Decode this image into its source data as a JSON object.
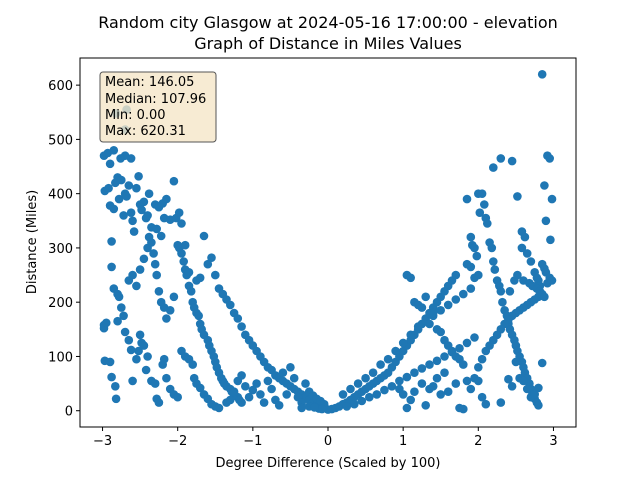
{
  "chart_data": {
    "type": "scatter",
    "title_line1": "Random city Glasgow at 2024-05-16 17:00:00  - elevation",
    "title_line2": "Graph of Distance in Miles Values",
    "xlabel": "Degree Difference (Scaled by 100)",
    "ylabel": "Distance (Miles)",
    "xlim": [
      -3.3,
      3.3
    ],
    "ylim": [
      -30,
      650
    ],
    "xticks": [
      -3,
      -2,
      -1,
      0,
      1,
      2,
      3
    ],
    "yticks": [
      0,
      100,
      200,
      300,
      400,
      500,
      600
    ],
    "grid": false,
    "marker_color": "#1f77b4",
    "stats_box": {
      "mean": "Mean: 146.05",
      "median": "Median: 107.96",
      "min": "Min: 0.00",
      "max": "Max: 620.31",
      "background": "#f5e6c8"
    },
    "points": [
      [
        -2.98,
        470
      ],
      [
        -2.93,
        475
      ],
      [
        -2.97,
        405
      ],
      [
        -2.92,
        410
      ],
      [
        -2.9,
        378
      ],
      [
        -2.85,
        372
      ],
      [
        -2.88,
        312
      ],
      [
        -2.88,
        265
      ],
      [
        -2.83,
        420
      ],
      [
        -2.8,
        430
      ],
      [
        -2.75,
        425
      ],
      [
        -2.78,
        390
      ],
      [
        -2.72,
        360
      ],
      [
        -2.7,
        400
      ],
      [
        -2.68,
        395
      ],
      [
        -2.65,
        415
      ],
      [
        -2.62,
        365
      ],
      [
        -2.6,
        350
      ],
      [
        -2.58,
        330
      ],
      [
        -2.55,
        410
      ],
      [
        -2.52,
        432
      ],
      [
        -2.5,
        380
      ],
      [
        -2.48,
        370
      ],
      [
        -2.45,
        385
      ],
      [
        -2.42,
        355
      ],
      [
        -2.4,
        360
      ],
      [
        -2.38,
        400
      ],
      [
        -2.35,
        338
      ],
      [
        -2.3,
        380
      ],
      [
        -2.28,
        335
      ],
      [
        -2.25,
        375
      ],
      [
        -2.22,
        322
      ],
      [
        -2.2,
        382
      ],
      [
        -2.18,
        355
      ],
      [
        -2.15,
        390
      ],
      [
        -2.1,
        352
      ],
      [
        -2.05,
        423
      ],
      [
        -2.02,
        355
      ],
      [
        -1.98,
        365
      ],
      [
        -1.95,
        345
      ],
      [
        -2.85,
        480
      ],
      [
        -2.9,
        455
      ],
      [
        -2.7,
        470
      ],
      [
        -2.76,
        465
      ],
      [
        -2.62,
        465
      ],
      [
        -2.82,
        548
      ],
      [
        -2.68,
        555
      ],
      [
        -2.7,
        518
      ],
      [
        -2.98,
        158
      ],
      [
        -2.98,
        152
      ],
      [
        -2.95,
        162
      ],
      [
        -2.97,
        92
      ],
      [
        -2.9,
        90
      ],
      [
        -2.88,
        62
      ],
      [
        -2.83,
        45
      ],
      [
        -2.82,
        22
      ],
      [
        -2.8,
        165
      ],
      [
        -2.78,
        210
      ],
      [
        -2.85,
        225
      ],
      [
        -2.8,
        215
      ],
      [
        -2.75,
        190
      ],
      [
        -2.72,
        175
      ],
      [
        -2.7,
        145
      ],
      [
        -2.65,
        130
      ],
      [
        -2.62,
        112
      ],
      [
        -2.6,
        55
      ],
      [
        -2.55,
        95
      ],
      [
        -2.52,
        110
      ],
      [
        -2.5,
        140
      ],
      [
        -2.48,
        125
      ],
      [
        -2.45,
        120
      ],
      [
        -2.4,
        100
      ],
      [
        -2.42,
        75
      ],
      [
        -2.35,
        55
      ],
      [
        -2.3,
        50
      ],
      [
        -2.28,
        22
      ],
      [
        -2.25,
        15
      ],
      [
        -2.2,
        85
      ],
      [
        -2.18,
        95
      ],
      [
        -2.15,
        60
      ],
      [
        -2.1,
        40
      ],
      [
        -2.05,
        30
      ],
      [
        -2.0,
        25
      ],
      [
        -2.65,
        240
      ],
      [
        -2.6,
        250
      ],
      [
        -2.55,
        230
      ],
      [
        -2.5,
        260
      ],
      [
        -2.45,
        280
      ],
      [
        -2.4,
        300
      ],
      [
        -2.38,
        320
      ],
      [
        -2.35,
        310
      ],
      [
        -2.32,
        290
      ],
      [
        -2.3,
        270
      ],
      [
        -2.28,
        250
      ],
      [
        -2.25,
        220
      ],
      [
        -2.22,
        200
      ],
      [
        -2.18,
        190
      ],
      [
        -2.15,
        170
      ],
      [
        -2.1,
        185
      ],
      [
        -2.05,
        210
      ],
      [
        -2.0,
        305
      ],
      [
        -1.98,
        300
      ],
      [
        -1.95,
        290
      ],
      [
        -1.92,
        275
      ],
      [
        -1.9,
        260
      ],
      [
        -1.88,
        250
      ],
      [
        -1.85,
        230
      ],
      [
        -1.82,
        220
      ],
      [
        -1.8,
        200
      ],
      [
        -1.78,
        190
      ],
      [
        -1.75,
        180
      ],
      [
        -1.72,
        175
      ],
      [
        -1.7,
        160
      ],
      [
        -1.68,
        150
      ],
      [
        -1.65,
        140
      ],
      [
        -1.6,
        130
      ],
      [
        -1.58,
        120
      ],
      [
        -1.55,
        110
      ],
      [
        -1.52,
        100
      ],
      [
        -1.5,
        90
      ],
      [
        -1.48,
        80
      ],
      [
        -1.45,
        70
      ],
      [
        -1.42,
        60
      ],
      [
        -1.4,
        55
      ],
      [
        -1.38,
        50
      ],
      [
        -1.35,
        45
      ],
      [
        -1.3,
        40
      ],
      [
        -1.28,
        35
      ],
      [
        -1.25,
        30
      ],
      [
        -1.2,
        25
      ],
      [
        -1.18,
        20
      ],
      [
        -1.15,
        15
      ],
      [
        -1.9,
        305
      ],
      [
        -1.85,
        255
      ],
      [
        -1.75,
        240
      ],
      [
        -1.7,
        245
      ],
      [
        -1.65,
        322
      ],
      [
        -1.6,
        270
      ],
      [
        -1.55,
        282
      ],
      [
        -1.5,
        250
      ],
      [
        -1.45,
        225
      ],
      [
        -1.4,
        215
      ],
      [
        -1.35,
        205
      ],
      [
        -1.3,
        195
      ],
      [
        -1.25,
        180
      ],
      [
        -1.2,
        170
      ],
      [
        -1.15,
        155
      ],
      [
        -1.1,
        140
      ],
      [
        -1.05,
        130
      ],
      [
        -1.0,
        120
      ],
      [
        -0.95,
        110
      ],
      [
        -0.9,
        100
      ],
      [
        -0.85,
        90
      ],
      [
        -0.8,
        80
      ],
      [
        -0.75,
        75
      ],
      [
        -0.7,
        65
      ],
      [
        -0.65,
        60
      ],
      [
        -0.6,
        55
      ],
      [
        -0.55,
        50
      ],
      [
        -0.5,
        45
      ],
      [
        -0.45,
        40
      ],
      [
        -0.4,
        35
      ],
      [
        -0.35,
        30
      ],
      [
        -0.3,
        25
      ],
      [
        -0.25,
        20
      ],
      [
        -0.2,
        15
      ],
      [
        -0.15,
        10
      ],
      [
        -0.1,
        8
      ],
      [
        -0.05,
        5
      ],
      [
        0.0,
        2
      ],
      [
        -1.95,
        110
      ],
      [
        -1.9,
        100
      ],
      [
        -1.85,
        95
      ],
      [
        -1.8,
        85
      ],
      [
        -1.78,
        60
      ],
      [
        -1.75,
        50
      ],
      [
        -1.7,
        42
      ],
      [
        -1.65,
        30
      ],
      [
        -1.6,
        22
      ],
      [
        -1.55,
        12
      ],
      [
        -1.5,
        8
      ],
      [
        -1.45,
        5
      ],
      [
        -1.35,
        15
      ],
      [
        -1.3,
        20
      ],
      [
        -1.25,
        35
      ],
      [
        -1.2,
        55
      ],
      [
        -1.15,
        65
      ],
      [
        -1.1,
        45
      ],
      [
        -1.05,
        25
      ],
      [
        -1.0,
        38
      ],
      [
        -0.95,
        50
      ],
      [
        -0.9,
        30
      ],
      [
        -0.85,
        15
      ],
      [
        -0.8,
        55
      ],
      [
        -0.75,
        40
      ],
      [
        -0.7,
        20
      ],
      [
        -0.65,
        10
      ],
      [
        -0.6,
        70
      ],
      [
        -0.55,
        30
      ],
      [
        -0.5,
        80
      ],
      [
        -0.45,
        60
      ],
      [
        -0.4,
        25
      ],
      [
        -0.35,
        15
      ],
      [
        -0.3,
        50
      ],
      [
        -0.25,
        35
      ],
      [
        -0.2,
        28
      ],
      [
        -0.15,
        22
      ],
      [
        -0.1,
        18
      ],
      [
        -0.05,
        12
      ],
      [
        -0.25,
        8
      ],
      [
        -0.35,
        5
      ],
      [
        -0.12,
        4
      ],
      [
        -0.08,
        3
      ],
      [
        -0.18,
        6
      ],
      [
        0.05,
        3
      ],
      [
        0.1,
        5
      ],
      [
        0.15,
        8
      ],
      [
        0.2,
        12
      ],
      [
        0.25,
        15
      ],
      [
        0.3,
        20
      ],
      [
        0.35,
        25
      ],
      [
        0.4,
        30
      ],
      [
        0.45,
        35
      ],
      [
        0.5,
        40
      ],
      [
        0.55,
        45
      ],
      [
        0.6,
        50
      ],
      [
        0.65,
        55
      ],
      [
        0.7,
        60
      ],
      [
        0.75,
        65
      ],
      [
        0.8,
        70
      ],
      [
        0.85,
        80
      ],
      [
        0.9,
        90
      ],
      [
        0.95,
        100
      ],
      [
        1.0,
        110
      ],
      [
        1.05,
        120
      ],
      [
        1.1,
        130
      ],
      [
        1.15,
        140
      ],
      [
        1.2,
        150
      ],
      [
        1.25,
        160
      ],
      [
        1.3,
        170
      ],
      [
        1.35,
        180
      ],
      [
        1.4,
        190
      ],
      [
        1.45,
        200
      ],
      [
        1.5,
        210
      ],
      [
        1.55,
        220
      ],
      [
        1.6,
        230
      ],
      [
        1.65,
        240
      ],
      [
        1.7,
        250
      ],
      [
        0.25,
        8
      ],
      [
        0.35,
        12
      ],
      [
        0.45,
        18
      ],
      [
        0.55,
        25
      ],
      [
        0.65,
        30
      ],
      [
        0.75,
        38
      ],
      [
        0.85,
        45
      ],
      [
        0.95,
        55
      ],
      [
        1.05,
        62
      ],
      [
        1.15,
        70
      ],
      [
        1.25,
        78
      ],
      [
        1.35,
        85
      ],
      [
        1.45,
        92
      ],
      [
        1.55,
        100
      ],
      [
        1.65,
        108
      ],
      [
        1.75,
        115
      ],
      [
        1.85,
        125
      ],
      [
        1.95,
        135
      ],
      [
        0.2,
        30
      ],
      [
        0.3,
        40
      ],
      [
        0.4,
        50
      ],
      [
        0.5,
        60
      ],
      [
        0.6,
        70
      ],
      [
        0.7,
        85
      ],
      [
        0.8,
        95
      ],
      [
        0.9,
        110
      ],
      [
        1.0,
        125
      ],
      [
        1.1,
        140
      ],
      [
        1.2,
        155
      ],
      [
        1.3,
        165
      ],
      [
        1.4,
        175
      ],
      [
        1.5,
        185
      ],
      [
        1.6,
        195
      ],
      [
        1.7,
        205
      ],
      [
        1.8,
        215
      ],
      [
        1.9,
        225
      ],
      [
        0.95,
        40
      ],
      [
        1.0,
        30
      ],
      [
        1.05,
        5
      ],
      [
        1.1,
        20
      ],
      [
        1.15,
        35
      ],
      [
        1.25,
        50
      ],
      [
        1.3,
        10
      ],
      [
        1.35,
        40
      ],
      [
        1.4,
        45
      ],
      [
        1.45,
        60
      ],
      [
        1.5,
        30
      ],
      [
        1.55,
        70
      ],
      [
        1.6,
        35
      ],
      [
        1.7,
        50
      ],
      [
        1.75,
        5
      ],
      [
        1.8,
        3
      ],
      [
        1.85,
        55
      ],
      [
        1.9,
        40
      ],
      [
        1.95,
        60
      ],
      [
        2.0,
        55
      ],
      [
        1.05,
        250
      ],
      [
        1.1,
        245
      ],
      [
        1.15,
        200
      ],
      [
        1.2,
        195
      ],
      [
        1.25,
        190
      ],
      [
        1.3,
        210
      ],
      [
        1.35,
        160
      ],
      [
        1.4,
        180
      ],
      [
        1.45,
        150
      ],
      [
        1.5,
        145
      ],
      [
        1.55,
        130
      ],
      [
        1.6,
        120
      ],
      [
        1.65,
        110
      ],
      [
        1.7,
        100
      ],
      [
        1.75,
        95
      ],
      [
        1.8,
        85
      ],
      [
        1.85,
        270
      ],
      [
        1.9,
        265
      ],
      [
        1.95,
        245
      ],
      [
        2.0,
        250
      ],
      [
        1.85,
        390
      ],
      [
        1.9,
        320
      ],
      [
        1.92,
        305
      ],
      [
        1.95,
        300
      ],
      [
        1.98,
        285
      ],
      [
        2.0,
        400
      ],
      [
        2.02,
        365
      ],
      [
        2.05,
        400
      ],
      [
        2.08,
        380
      ],
      [
        2.1,
        355
      ],
      [
        2.12,
        345
      ],
      [
        2.15,
        310
      ],
      [
        2.18,
        300
      ],
      [
        2.2,
        275
      ],
      [
        2.22,
        260
      ],
      [
        2.25,
        240
      ],
      [
        2.28,
        230
      ],
      [
        2.3,
        220
      ],
      [
        2.32,
        200
      ],
      [
        2.35,
        185
      ],
      [
        2.38,
        175
      ],
      [
        2.4,
        160
      ],
      [
        2.42,
        150
      ],
      [
        2.45,
        140
      ],
      [
        2.48,
        130
      ],
      [
        2.5,
        120
      ],
      [
        2.52,
        110
      ],
      [
        2.55,
        100
      ],
      [
        2.58,
        90
      ],
      [
        2.6,
        80
      ],
      [
        2.62,
        70
      ],
      [
        2.65,
        60
      ],
      [
        2.68,
        50
      ],
      [
        2.7,
        40
      ],
      [
        2.72,
        30
      ],
      [
        2.75,
        22
      ],
      [
        2.78,
        15
      ],
      [
        2.8,
        10
      ],
      [
        2.2,
        448
      ],
      [
        2.3,
        465
      ],
      [
        2.45,
        460
      ],
      [
        2.52,
        395
      ],
      [
        2.58,
        330
      ],
      [
        2.62,
        320
      ],
      [
        2.65,
        290
      ],
      [
        2.7,
        275
      ],
      [
        2.75,
        255
      ],
      [
        2.78,
        245
      ],
      [
        2.8,
        240
      ],
      [
        2.82,
        230
      ],
      [
        2.85,
        270
      ],
      [
        2.88,
        262
      ],
      [
        2.9,
        255
      ],
      [
        2.92,
        235
      ],
      [
        2.95,
        245
      ],
      [
        2.98,
        240
      ],
      [
        2.92,
        470
      ],
      [
        2.95,
        465
      ],
      [
        2.98,
        390
      ],
      [
        2.96,
        315
      ],
      [
        2.9,
        350
      ],
      [
        2.85,
        620
      ],
      [
        2.88,
        415
      ],
      [
        2.8,
        210
      ],
      [
        2.75,
        205
      ],
      [
        2.7,
        200
      ],
      [
        2.65,
        195
      ],
      [
        2.6,
        190
      ],
      [
        2.55,
        185
      ],
      [
        2.5,
        180
      ],
      [
        2.45,
        175
      ],
      [
        2.4,
        168
      ],
      [
        2.35,
        160
      ],
      [
        2.3,
        150
      ],
      [
        2.25,
        140
      ],
      [
        2.2,
        130
      ],
      [
        2.15,
        120
      ],
      [
        2.1,
        110
      ],
      [
        2.05,
        95
      ],
      [
        2.0,
        80
      ],
      [
        2.05,
        25
      ],
      [
        2.1,
        12
      ],
      [
        2.3,
        15
      ],
      [
        2.4,
        58
      ],
      [
        2.45,
        45
      ],
      [
        2.5,
        90
      ],
      [
        2.55,
        60
      ],
      [
        2.6,
        55
      ],
      [
        2.65,
        40
      ],
      [
        2.7,
        25
      ],
      [
        2.75,
        30
      ],
      [
        2.8,
        42
      ],
      [
        2.85,
        88
      ],
      [
        2.42,
        220
      ],
      [
        2.48,
        240
      ],
      [
        2.52,
        250
      ],
      [
        2.58,
        300
      ],
      [
        2.6,
        240
      ],
      [
        2.68,
        235
      ],
      [
        2.72,
        230
      ],
      [
        2.78,
        225
      ],
      [
        2.82,
        220
      ],
      [
        2.85,
        215
      ],
      [
        2.88,
        210
      ]
    ]
  }
}
